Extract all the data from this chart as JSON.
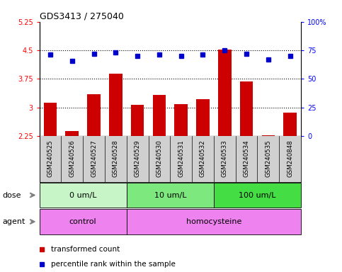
{
  "title": "GDS3413 / 275040",
  "samples": [
    "GSM240525",
    "GSM240526",
    "GSM240527",
    "GSM240528",
    "GSM240529",
    "GSM240530",
    "GSM240531",
    "GSM240532",
    "GSM240533",
    "GSM240534",
    "GSM240535",
    "GSM240848"
  ],
  "transformed_count": [
    3.13,
    2.38,
    3.35,
    3.88,
    3.06,
    3.33,
    3.09,
    3.22,
    4.52,
    3.68,
    2.27,
    2.87
  ],
  "percentile_rank": [
    71,
    66,
    72,
    73,
    70,
    71,
    70,
    71,
    75,
    72,
    67,
    70
  ],
  "ylim_left": [
    2.25,
    5.25
  ],
  "ylim_right": [
    0,
    100
  ],
  "yticks_left": [
    2.25,
    3.0,
    3.75,
    4.5,
    5.25
  ],
  "yticks_right": [
    0,
    25,
    50,
    75,
    100
  ],
  "ytick_labels_left": [
    "2.25",
    "3",
    "3.75",
    "4.5",
    "5.25"
  ],
  "ytick_labels_right": [
    "0",
    "25",
    "50",
    "75",
    "100%"
  ],
  "hlines": [
    3.0,
    3.75,
    4.5
  ],
  "dose_groups": [
    {
      "label": "0 um/L",
      "start": 0,
      "end": 4,
      "color": "#c8f5c8"
    },
    {
      "label": "10 um/L",
      "start": 4,
      "end": 8,
      "color": "#7de87d"
    },
    {
      "label": "100 um/L",
      "start": 8,
      "end": 12,
      "color": "#44dd44"
    }
  ],
  "agent_groups": [
    {
      "label": "control",
      "start": 0,
      "end": 4
    },
    {
      "label": "homocysteine",
      "start": 4,
      "end": 12
    }
  ],
  "agent_color": "#ee82ee",
  "bar_color": "#cc0000",
  "dot_color": "#0000cc",
  "plot_bg": "#ffffff",
  "sample_bg": "#d0d0d0",
  "legend_items": [
    {
      "color": "#cc0000",
      "label": "transformed count"
    },
    {
      "color": "#0000cc",
      "label": "percentile rank within the sample"
    }
  ],
  "dose_label": "dose",
  "agent_label": "agent",
  "group_boundaries": [
    4,
    8
  ]
}
